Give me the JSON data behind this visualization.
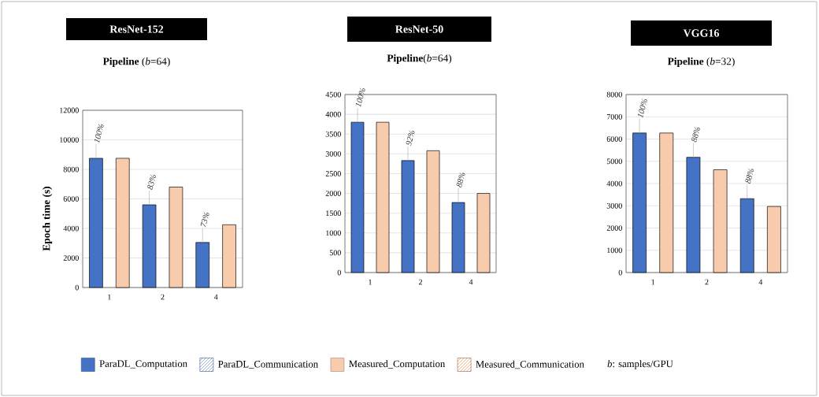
{
  "chart_data": [
    {
      "type": "bar",
      "title": "ResNet-152",
      "subtitle": "**Pipeline** (*b*=64)",
      "ylabel": "Epoch time (s)",
      "categories": [
        "1",
        "2",
        "4"
      ],
      "series": [
        {
          "name": "ParaDL_Computation",
          "color": "#4472c4",
          "values": [
            8750,
            5600,
            3050
          ]
        },
        {
          "name": "ParaDL_Communication",
          "color": "#4472c4",
          "values": [
            null,
            null,
            null
          ]
        },
        {
          "name": "Measured_Computation",
          "color": "#f8cbad",
          "values": [
            8750,
            6800,
            4250
          ]
        },
        {
          "name": "Measured_Communication",
          "color": "#ed7d31",
          "values": [
            null,
            null,
            null
          ]
        }
      ],
      "ylim": [
        0,
        12000
      ],
      "yticks": [
        0,
        2000,
        4000,
        6000,
        8000,
        10000,
        12000
      ],
      "grid": "y",
      "legend": "bottom",
      "annotations": [
        "100%",
        "83%",
        "73%",
        "*b*: samples/GPU"
      ]
    },
    {
      "type": "bar",
      "title": "ResNet-50",
      "subtitle": "**Pipeline**(*b*=64)",
      "categories": [
        "1",
        "2",
        "4"
      ],
      "series": [
        {
          "color": "#4472c4",
          "values": [
            3800,
            2830,
            1770
          ]
        },
        {
          "color": "#f8cbad",
          "values": [
            3800,
            3080,
            2000
          ]
        }
      ],
      "ylim": [
        0,
        4500
      ],
      "yticks": [
        0,
        500,
        1000,
        1500,
        2000,
        2500,
        3000,
        3500,
        4000,
        4500
      ],
      "grid": "y",
      "annotations": [
        "100%",
        "92%",
        "88%"
      ]
    },
    {
      "type": "bar",
      "title": "VGG16",
      "subtitle": "**Pipeline** (*b*=32)",
      "categories": [
        "1",
        "2",
        "4"
      ],
      "series": [
        {
          "color": "#4472c4",
          "values": [
            6270,
            5180,
            3320
          ]
        },
        {
          "color": "#f8cbad",
          "values": [
            6270,
            4620,
            2970
          ]
        }
      ],
      "ylim": [
        0,
        8000
      ],
      "yticks": [
        0,
        1000,
        2000,
        3000,
        4000,
        5000,
        6000,
        7000,
        8000
      ],
      "grid": "y",
      "annotations": [
        "100%",
        "88%",
        "88%"
      ]
    }
  ]
}
